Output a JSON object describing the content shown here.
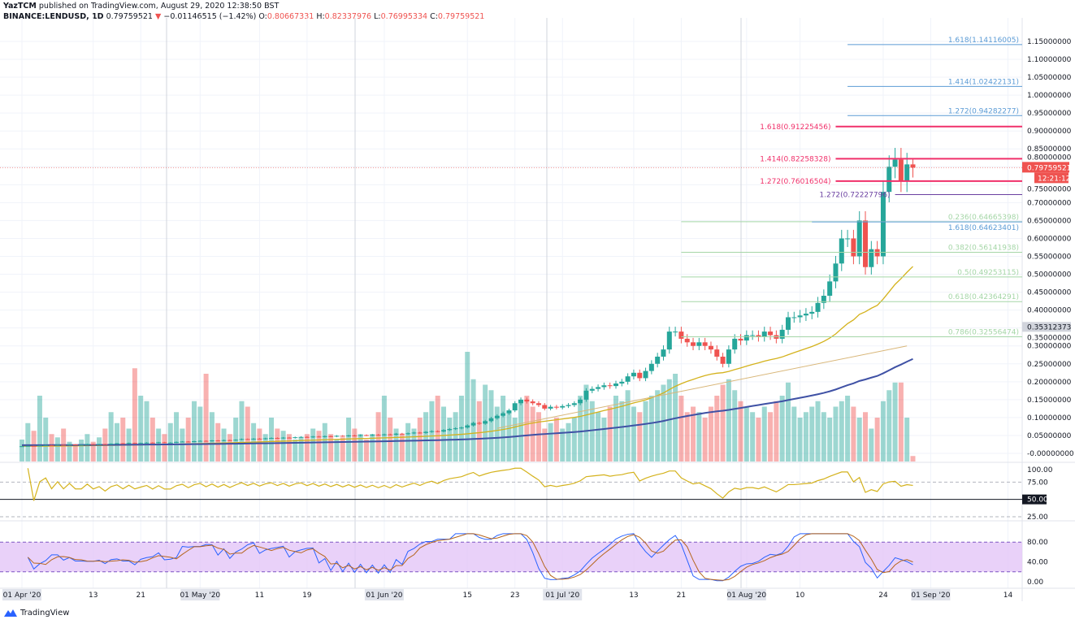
{
  "header": {
    "publisher": "YazTCM",
    "published_text": "published on TradingView.com, August 29, 2020 12:38:50 BST",
    "symbol": "BINANCE:LENDUSD, 1D",
    "last": "0.79759521",
    "change": "−0.01146515 (−1.42%)",
    "change_icon": "triangle-down-icon",
    "o_label": "O:",
    "o": "0.80667331",
    "h_label": "H:",
    "h": "0.82337976",
    "l_label": "L:",
    "l": "0.76995334",
    "c_label": "C:",
    "c": "0.79759521"
  },
  "colors": {
    "up": "#26a69a",
    "down": "#ef5350",
    "fib_red": "#f0306a",
    "fib_blue": "#5b9bd5",
    "fib_green": "#a5d6a7",
    "fib_purple": "#6a3fa0",
    "ma_fast": "#d4b21c",
    "ma_slow": "#3f51a5",
    "trend": "#d9b77a",
    "stoch_band": "#e4c6f7"
  },
  "chart_data": {
    "type": "candlestick",
    "start_date": "2020-04-01",
    "closes": [
      0.02,
      0.021,
      0.02,
      0.022,
      0.023,
      0.022,
      0.024,
      0.023,
      0.025,
      0.024,
      0.024,
      0.026,
      0.025,
      0.026,
      0.025,
      0.027,
      0.028,
      0.027,
      0.029,
      0.028,
      0.029,
      0.03,
      0.029,
      0.031,
      0.03,
      0.03,
      0.032,
      0.033,
      0.032,
      0.034,
      0.035,
      0.034,
      0.036,
      0.035,
      0.037,
      0.036,
      0.038,
      0.04,
      0.039,
      0.041,
      0.04,
      0.042,
      0.043,
      0.042,
      0.044,
      0.043,
      0.045,
      0.046,
      0.045,
      0.047,
      0.046,
      0.048,
      0.047,
      0.049,
      0.048,
      0.05,
      0.049,
      0.051,
      0.05,
      0.052,
      0.051,
      0.053,
      0.052,
      0.055,
      0.054,
      0.056,
      0.058,
      0.057,
      0.06,
      0.062,
      0.061,
      0.065,
      0.068,
      0.07,
      0.072,
      0.078,
      0.085,
      0.083,
      0.09,
      0.098,
      0.105,
      0.112,
      0.12,
      0.14,
      0.15,
      0.145,
      0.14,
      0.135,
      0.125,
      0.13,
      0.128,
      0.132,
      0.135,
      0.14,
      0.15,
      0.175,
      0.18,
      0.185,
      0.19,
      0.188,
      0.195,
      0.2,
      0.215,
      0.225,
      0.21,
      0.23,
      0.25,
      0.27,
      0.29,
      0.34,
      0.34,
      0.32,
      0.31,
      0.3,
      0.31,
      0.3,
      0.29,
      0.27,
      0.25,
      0.29,
      0.32,
      0.315,
      0.33,
      0.33,
      0.325,
      0.34,
      0.33,
      0.32,
      0.345,
      0.38,
      0.38,
      0.385,
      0.39,
      0.395,
      0.42,
      0.44,
      0.48,
      0.53,
      0.6,
      0.6,
      0.55,
      0.65,
      0.52,
      0.57,
      0.55,
      0.73,
      0.8,
      0.82,
      0.76,
      0.80667331,
      0.79759521
    ],
    "last_bar": {
      "open": 0.80667331,
      "high": 0.82337976,
      "low": 0.76995334,
      "close": 0.79759521
    },
    "volume_relative": [
      20,
      35,
      28,
      60,
      40,
      25,
      22,
      30,
      18,
      15,
      20,
      25,
      18,
      22,
      30,
      45,
      35,
      40,
      30,
      85,
      60,
      55,
      40,
      30,
      25,
      35,
      45,
      30,
      40,
      55,
      50,
      80,
      45,
      35,
      30,
      25,
      40,
      55,
      50,
      35,
      30,
      25,
      40,
      30,
      28,
      25,
      20,
      22,
      25,
      30,
      28,
      35,
      25,
      20,
      22,
      40,
      30,
      25,
      20,
      25,
      45,
      60,
      40,
      30,
      25,
      35,
      30,
      40,
      45,
      55,
      60,
      50,
      40,
      45,
      60,
      100,
      75,
      55,
      70,
      65,
      50,
      60,
      45,
      40,
      55,
      60,
      50,
      45,
      30,
      35,
      40,
      30,
      35,
      40,
      60,
      70,
      55,
      45,
      40,
      50,
      60,
      55,
      65,
      50,
      45,
      55,
      60,
      65,
      70,
      75,
      80,
      60,
      45,
      50,
      45,
      40,
      50,
      60,
      70,
      75,
      65,
      55,
      50,
      45,
      40,
      50,
      45,
      55,
      60,
      72,
      50,
      40,
      45,
      50,
      55,
      45,
      40,
      50,
      55,
      60,
      50,
      40,
      45,
      30,
      40,
      55,
      65,
      72,
      72,
      40,
      5
    ],
    "x_ticks": [
      "01 Apr '20",
      "13",
      "21",
      "01 May '20",
      "11",
      "19",
      "01 Jun '20",
      "15",
      "23",
      "01 Jul '20",
      "13",
      "21",
      "01 Aug '20",
      "10",
      "24",
      "01 Sep '20",
      "14"
    ],
    "x_tick_dates": [
      "2020-04-01",
      "2020-04-13",
      "2020-04-21",
      "2020-05-01",
      "2020-05-11",
      "2020-05-19",
      "2020-06-01",
      "2020-06-15",
      "2020-06-23",
      "2020-07-01",
      "2020-07-13",
      "2020-07-21",
      "2020-08-01",
      "2020-08-10",
      "2020-08-24",
      "2020-09-01",
      "2020-09-14"
    ],
    "y_ticks": [
      "1.15000000",
      "1.10000000",
      "1.05000000",
      "1.00000000",
      "0.95000000",
      "0.90000000",
      "0.85000000",
      "0.80000000",
      "0.75000000",
      "0.70000000",
      "0.65000000",
      "0.60000000",
      "0.55000000",
      "0.50000000",
      "0.45000000",
      "0.40000000",
      "0.35000000",
      "0.30000000",
      "0.25000000",
      "0.20000000",
      "0.15000000",
      "0.10000000",
      "0.05000000",
      "-0.00000000"
    ],
    "ylim": [
      0,
      1.15
    ],
    "price_label": "0.79759521",
    "countdown": "12:21:12",
    "marker_label": "0.35312373",
    "marker_value": 0.35312373,
    "fib_levels": [
      {
        "label": "1.618(1.14116005)",
        "value": 1.14116005,
        "color": "fib_blue",
        "from": "2020-08-18"
      },
      {
        "label": "1.414(1.02422131)",
        "value": 1.02422131,
        "color": "fib_blue",
        "from": "2020-08-18"
      },
      {
        "label": "1.272(0.94282277)",
        "value": 0.94282277,
        "color": "fib_blue",
        "from": "2020-08-18"
      },
      {
        "label": "1.618(0.91225456)",
        "value": 0.91225456,
        "color": "fib_red",
        "from": "2020-08-16",
        "left_label": true
      },
      {
        "label": "1.414(0.82258328)",
        "value": 0.82258328,
        "color": "fib_red",
        "from": "2020-08-16",
        "left_label": true
      },
      {
        "label": "1.272(0.76016504)",
        "value": 0.76016504,
        "color": "fib_red",
        "from": "2020-08-16",
        "left_label": true
      },
      {
        "label": "1.272(0.72227796)",
        "value": 0.72227796,
        "color": "fib_purple",
        "from": "2020-08-26",
        "left_label": true
      },
      {
        "label": "0.236(0.64665398)",
        "value": 0.64665398,
        "color": "fib_green",
        "from": "2020-07-21"
      },
      {
        "label": "1.618(0.64623401)",
        "value": 0.64623401,
        "color": "fib_blue",
        "from": "2020-08-12",
        "below": true
      },
      {
        "label": "0.382(0.56141938)",
        "value": 0.56141938,
        "color": "fib_green",
        "from": "2020-07-21"
      },
      {
        "label": "0.5(0.49253115)",
        "value": 0.49253115,
        "color": "fib_green",
        "from": "2020-07-21"
      },
      {
        "label": "0.618(0.42364291)",
        "value": 0.42364291,
        "color": "fib_green",
        "from": "2020-07-21"
      },
      {
        "label": "0.786(0.32556474)",
        "value": 0.32556474,
        "color": "fib_green",
        "from": "2020-07-21"
      }
    ],
    "rsi": {
      "y_ticks": [
        "100.00",
        "75.00",
        "25.00"
      ],
      "level_label": "50.00"
    },
    "stoch": {
      "y_ticks": [
        "80.00",
        "40.00",
        "0.00"
      ]
    }
  },
  "footer": {
    "brand": "TradingView",
    "logo_icon": "tradingview-logo-icon"
  }
}
